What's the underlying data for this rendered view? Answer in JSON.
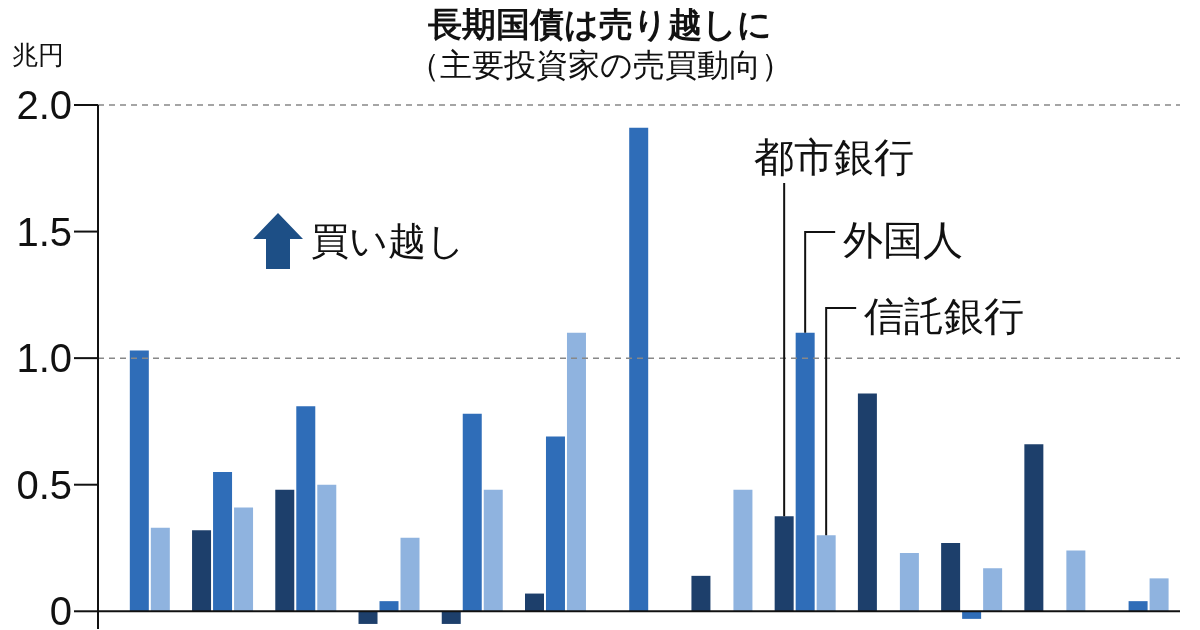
{
  "chart_data": {
    "type": "bar",
    "title": "長期国債は売り越しに",
    "subtitle": "（主要投資家の売買動向）",
    "ylabel": "兆円",
    "annotations": [
      "買い越し"
    ],
    "categories": [
      null,
      null,
      null,
      null,
      null,
      null,
      null,
      null,
      null,
      null,
      null,
      null,
      null
    ],
    "series": [
      {
        "name": "都市銀行",
        "color": "#1d3f6b",
        "values": [
          0,
          0.32,
          0.48,
          -0.05,
          -0.05,
          0.07,
          null,
          0.14,
          0.375,
          0.86,
          0.27,
          0.66,
          null
        ]
      },
      {
        "name": "外国人",
        "color": "#2f6db8",
        "values": [
          1.03,
          0.55,
          0.81,
          0.04,
          0.78,
          0.69,
          1.91,
          null,
          1.1,
          null,
          -0.03,
          null,
          0.04
        ]
      },
      {
        "name": "信託銀行",
        "color": "#8fb3df",
        "values": [
          0.33,
          0.41,
          0.5,
          0.29,
          0.48,
          1.1,
          null,
          0.48,
          0.3,
          0.23,
          0.17,
          0.24,
          0.13
        ]
      }
    ],
    "ylim": [
      -0.07,
      2.0
    ],
    "yticks": [
      0,
      {
        "value": 0.5,
        "label": "0.5"
      },
      {
        "value": 1,
        "label": "1.0"
      },
      {
        "value": 1.5,
        "label": "1.5"
      },
      {
        "value": 2,
        "label": "2.0"
      }
    ],
    "grid": false,
    "legend": false,
    "ref_lines": [
      {
        "axis": "y",
        "value": 1,
        "color": "#888888",
        "line_style": "dashed"
      },
      {
        "axis": "y",
        "value": 2,
        "color": "#888888",
        "line_style": "dashed"
      }
    ]
  }
}
